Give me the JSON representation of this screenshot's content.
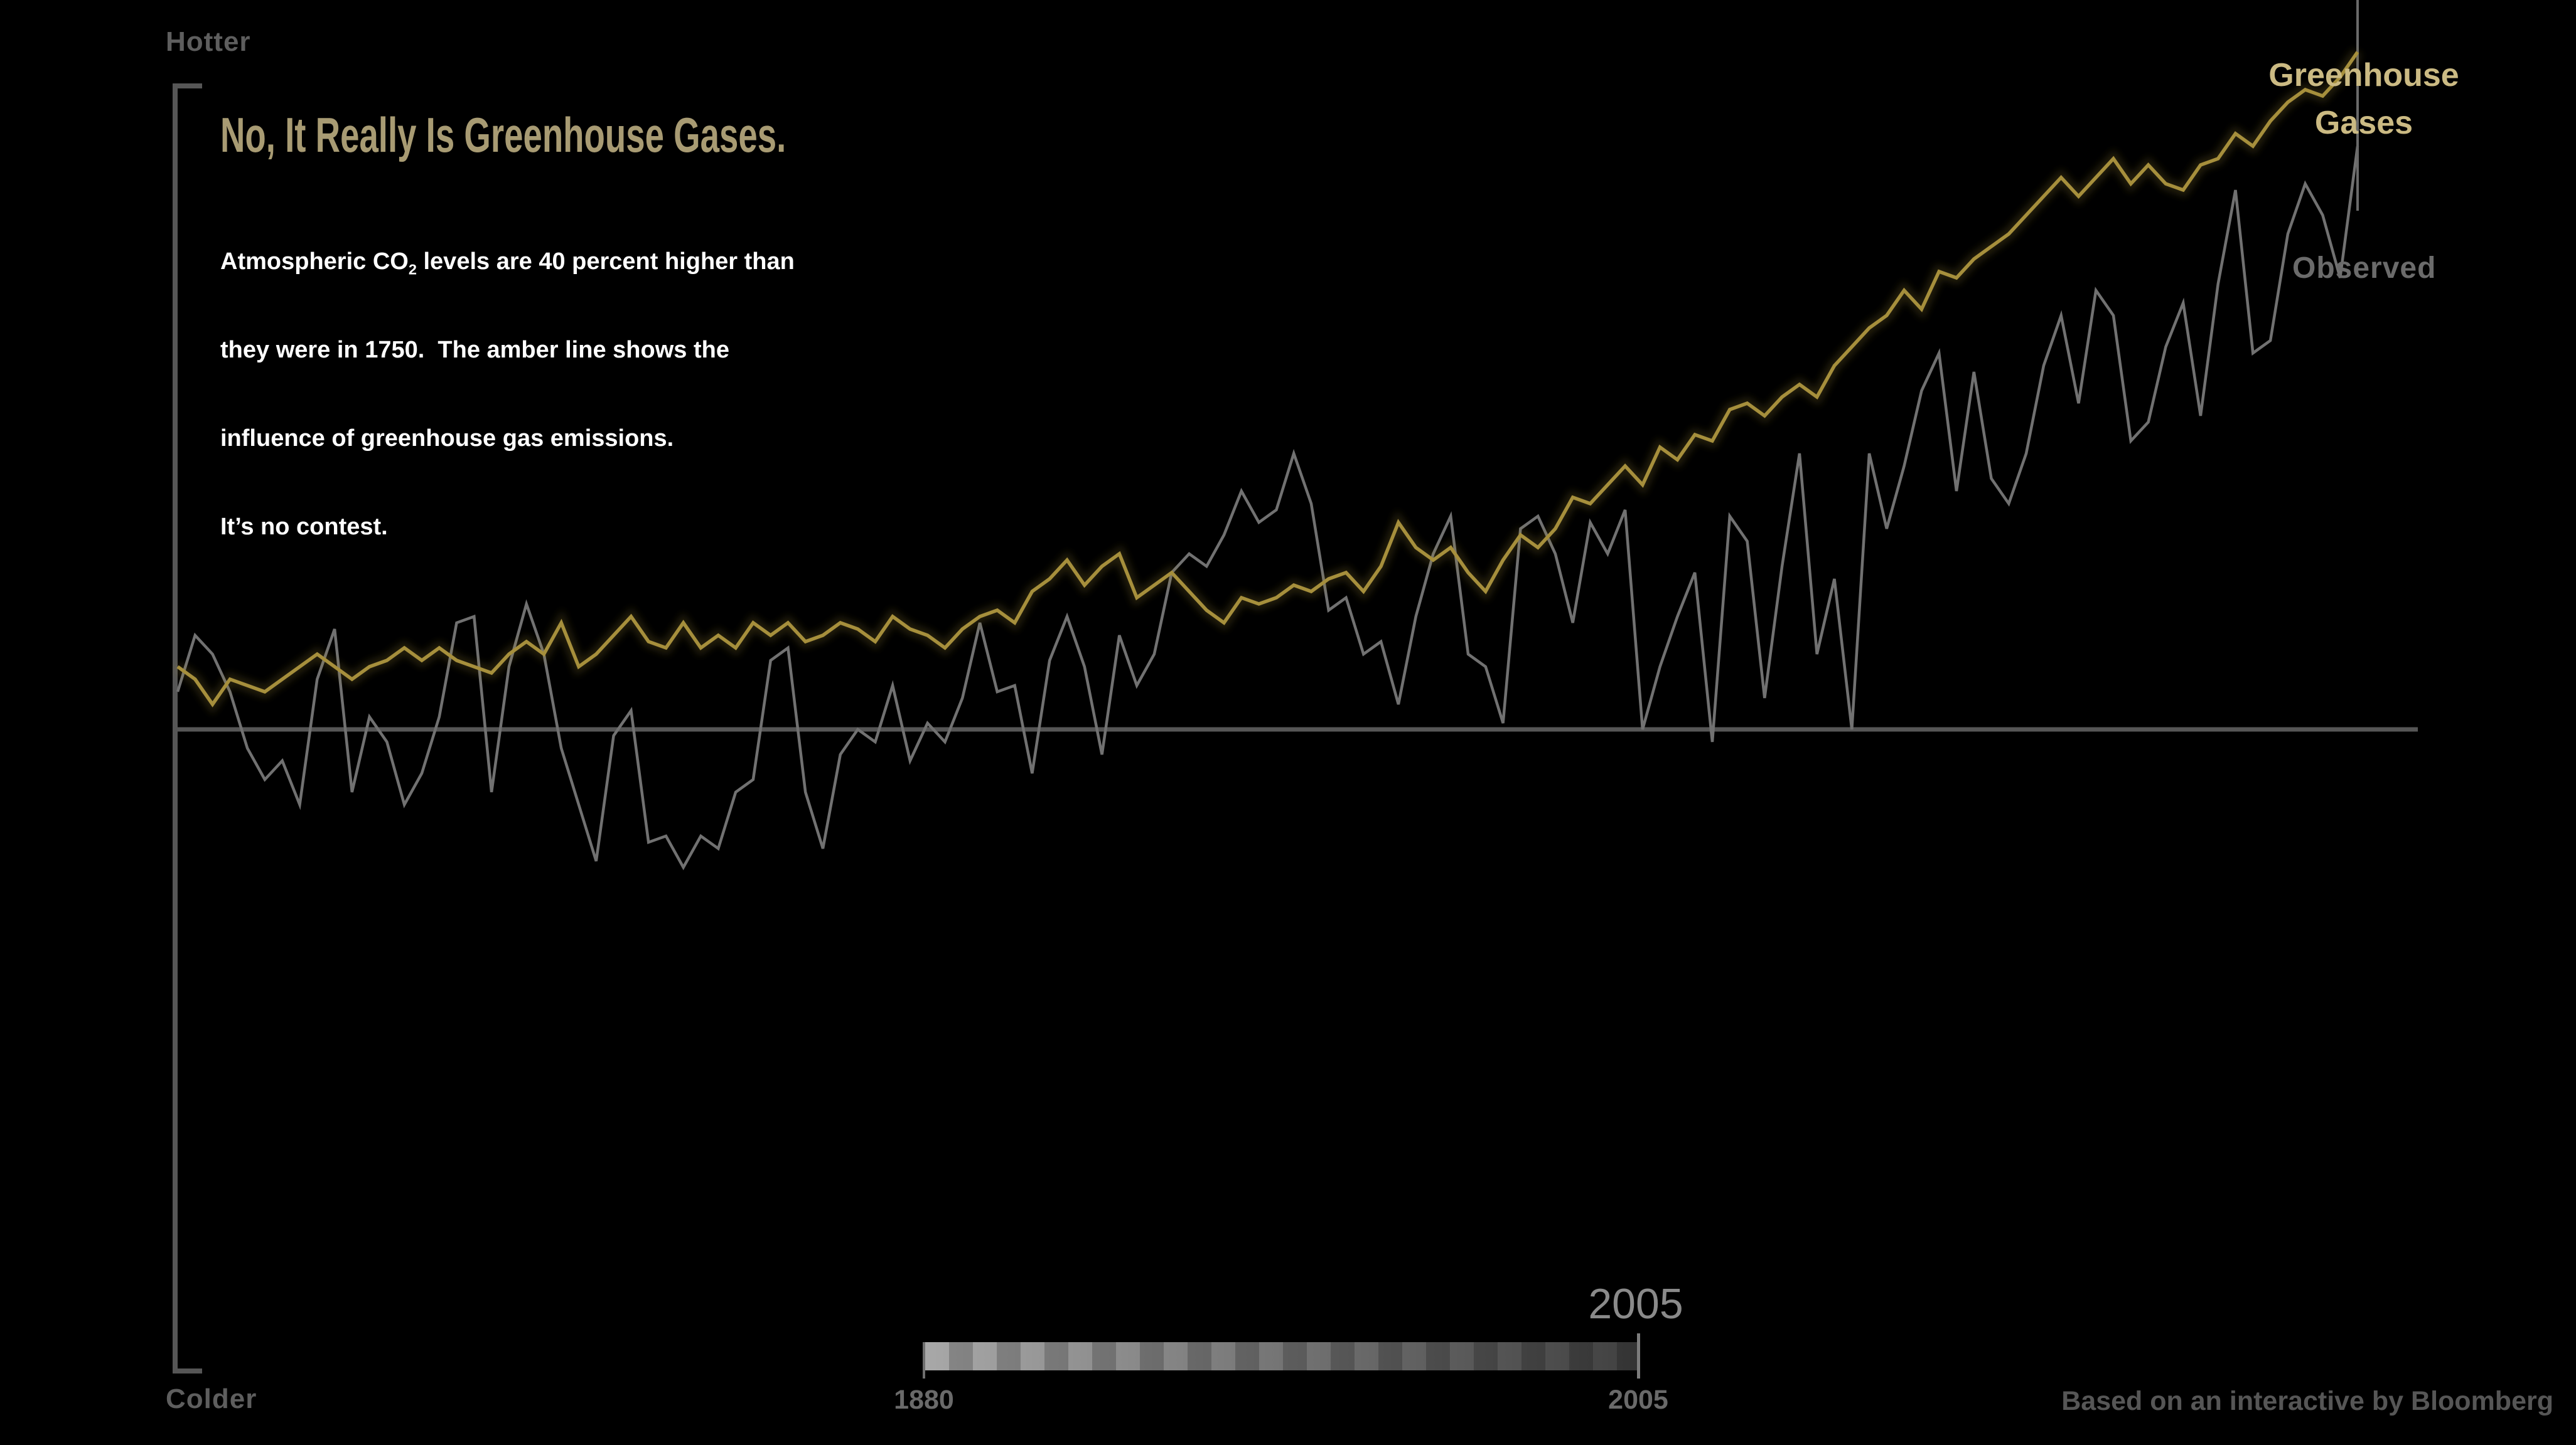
{
  "header": {
    "title": "No, It Really Is Greenhouse Gases.",
    "subtitle": {
      "line1_pre": "Atmospheric CO",
      "line1_sub": "2",
      "line1_post": " levels are 40 percent higher than",
      "line2": "they were in 1750.  The amber line shows the",
      "line3": "influence of greenhouse gas emissions.",
      "line4": "It’s no contest."
    }
  },
  "axis_labels": {
    "hotter": "Hotter",
    "colder": "Colder"
  },
  "series_labels": {
    "greenhouse_line1": "Greenhouse",
    "greenhouse_line2": "Gases",
    "observed": "Observed"
  },
  "slider": {
    "current_year": "2005",
    "start_label": "1880",
    "end_label": "2005"
  },
  "footer": {
    "credit": "Based on an interactive by Bloomberg"
  },
  "colors": {
    "background": "#000000",
    "greenhouse_line": "#A68F3C",
    "greenhouse_label": "#CBBA83",
    "title_amber": "#A89B73",
    "observed_line": "#717171",
    "observed_label": "#6B6B6B",
    "baseline_axis": "#565656",
    "scrubber": "#6A6A6A",
    "subtitle_text": "#FFFFFF"
  },
  "chart_data": {
    "type": "line",
    "title": "No, It Really Is Greenhouse Gases.",
    "x_axis": {
      "start_label": "1880",
      "end_label": "2005",
      "current_year": 2005
    },
    "y_axis": {
      "top_label": "Hotter",
      "bottom_label": "Colder",
      "baseline_value": 0,
      "units": "temperature anomaly (°C, implied)",
      "ylim": [
        -0.5,
        1.15
      ]
    },
    "grid": false,
    "legend_position": "right-inline",
    "years": [
      1880,
      1881,
      1882,
      1883,
      1884,
      1885,
      1886,
      1887,
      1888,
      1889,
      1890,
      1891,
      1892,
      1893,
      1894,
      1895,
      1896,
      1897,
      1898,
      1899,
      1900,
      1901,
      1902,
      1903,
      1904,
      1905,
      1906,
      1907,
      1908,
      1909,
      1910,
      1911,
      1912,
      1913,
      1914,
      1915,
      1916,
      1917,
      1918,
      1919,
      1920,
      1921,
      1922,
      1923,
      1924,
      1925,
      1926,
      1927,
      1928,
      1929,
      1930,
      1931,
      1932,
      1933,
      1934,
      1935,
      1936,
      1937,
      1938,
      1939,
      1940,
      1941,
      1942,
      1943,
      1944,
      1945,
      1946,
      1947,
      1948,
      1949,
      1950,
      1951,
      1952,
      1953,
      1954,
      1955,
      1956,
      1957,
      1958,
      1959,
      1960,
      1961,
      1962,
      1963,
      1964,
      1965,
      1966,
      1967,
      1968,
      1969,
      1970,
      1971,
      1972,
      1973,
      1974,
      1975,
      1976,
      1977,
      1978,
      1979,
      1980,
      1981,
      1982,
      1983,
      1984,
      1985,
      1986,
      1987,
      1988,
      1989,
      1990,
      1991,
      1992,
      1993,
      1994,
      1995,
      1996,
      1997,
      1998,
      1999,
      2000,
      2001,
      2002,
      2003,
      2004,
      2005
    ],
    "series": [
      {
        "name": "Greenhouse Gases",
        "color": "#A68F3C",
        "values": [
          0.1,
          0.08,
          0.04,
          0.08,
          0.07,
          0.06,
          0.08,
          0.1,
          0.12,
          0.1,
          0.08,
          0.1,
          0.11,
          0.13,
          0.11,
          0.13,
          0.11,
          0.1,
          0.09,
          0.12,
          0.14,
          0.12,
          0.17,
          0.1,
          0.12,
          0.15,
          0.18,
          0.14,
          0.13,
          0.17,
          0.13,
          0.15,
          0.13,
          0.17,
          0.15,
          0.17,
          0.14,
          0.15,
          0.17,
          0.16,
          0.14,
          0.18,
          0.16,
          0.15,
          0.13,
          0.16,
          0.18,
          0.19,
          0.17,
          0.22,
          0.24,
          0.27,
          0.23,
          0.26,
          0.28,
          0.21,
          0.23,
          0.25,
          0.22,
          0.19,
          0.17,
          0.21,
          0.2,
          0.21,
          0.23,
          0.22,
          0.24,
          0.25,
          0.22,
          0.26,
          0.33,
          0.29,
          0.27,
          0.29,
          0.25,
          0.22,
          0.27,
          0.31,
          0.29,
          0.32,
          0.37,
          0.36,
          0.39,
          0.42,
          0.39,
          0.45,
          0.43,
          0.47,
          0.46,
          0.51,
          0.52,
          0.5,
          0.53,
          0.55,
          0.53,
          0.58,
          0.61,
          0.64,
          0.66,
          0.7,
          0.67,
          0.73,
          0.72,
          0.75,
          0.77,
          0.79,
          0.82,
          0.85,
          0.88,
          0.85,
          0.88,
          0.91,
          0.87,
          0.9,
          0.87,
          0.86,
          0.9,
          0.91,
          0.95,
          0.93,
          0.97,
          1.0,
          1.02,
          1.01,
          1.04,
          1.08
        ]
      },
      {
        "name": "Observed",
        "color": "#717171",
        "values": [
          0.06,
          0.15,
          0.12,
          0.06,
          -0.03,
          -0.08,
          -0.05,
          -0.12,
          0.08,
          0.16,
          -0.1,
          0.02,
          -0.02,
          -0.12,
          -0.07,
          0.02,
          0.17,
          0.18,
          -0.1,
          0.1,
          0.2,
          0.12,
          -0.03,
          -0.12,
          -0.21,
          -0.01,
          0.03,
          -0.18,
          -0.17,
          -0.22,
          -0.17,
          -0.19,
          -0.1,
          -0.08,
          0.11,
          0.13,
          -0.1,
          -0.19,
          -0.04,
          0.0,
          -0.02,
          0.07,
          -0.05,
          0.01,
          -0.02,
          0.05,
          0.17,
          0.06,
          0.07,
          -0.07,
          0.11,
          0.18,
          0.1,
          -0.04,
          0.15,
          0.07,
          0.12,
          0.25,
          0.28,
          0.26,
          0.31,
          0.38,
          0.33,
          0.35,
          0.44,
          0.36,
          0.19,
          0.21,
          0.12,
          0.14,
          0.04,
          0.18,
          0.28,
          0.34,
          0.12,
          0.1,
          0.01,
          0.32,
          0.34,
          0.28,
          0.17,
          0.33,
          0.28,
          0.35,
          0.0,
          0.1,
          0.18,
          0.25,
          -0.02,
          0.34,
          0.3,
          0.05,
          0.26,
          0.44,
          0.12,
          0.24,
          0.0,
          0.44,
          0.32,
          0.42,
          0.54,
          0.6,
          0.38,
          0.57,
          0.4,
          0.36,
          0.44,
          0.58,
          0.66,
          0.52,
          0.7,
          0.66,
          0.46,
          0.49,
          0.61,
          0.68,
          0.5,
          0.71,
          0.86,
          0.6,
          0.62,
          0.79,
          0.87,
          0.82,
          0.72,
          0.93
        ]
      }
    ]
  }
}
